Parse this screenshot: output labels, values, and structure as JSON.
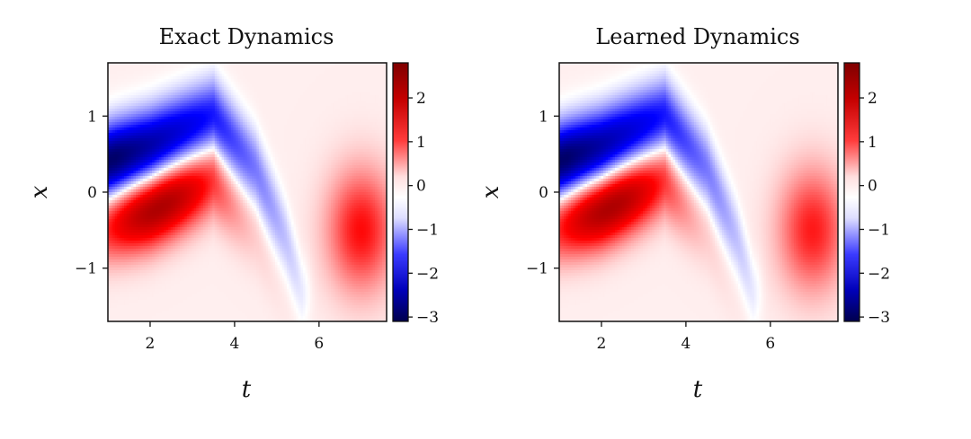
{
  "figure": {
    "colormap": "seismic",
    "colors": {
      "low": "#00004d",
      "mid": "#ffffff",
      "high": "#7f0000",
      "background_value_color": "#f6e6e6"
    }
  },
  "chart_data": [
    {
      "type": "heatmap",
      "title": "Exact Dynamics",
      "xlabel": "t",
      "ylabel": "x",
      "xlim": [
        1.0,
        7.6
      ],
      "ylim": [
        -1.7,
        1.7
      ],
      "xticks": [
        2,
        4,
        6
      ],
      "xtick_labels": [
        "2",
        "4",
        "6"
      ],
      "yticks": [
        1,
        0,
        -1
      ],
      "ytick_labels": [
        "1",
        "0",
        "−1"
      ],
      "colorbar": {
        "vmin": -3.1,
        "vmax": 2.8,
        "ticks": [
          2,
          1,
          0,
          -1,
          -2,
          -3
        ],
        "tick_labels": [
          "2",
          "1",
          "0",
          "−1",
          "−2",
          "−3"
        ]
      },
      "field_features": [
        {
          "kind": "negative-band",
          "path_t": [
            1.0,
            2.0,
            3.5,
            4.5,
            5.2,
            5.6
          ],
          "path_x": [
            0.4,
            0.6,
            1.0,
            0.3,
            -0.6,
            -1.3
          ],
          "peak_value": -3.0
        },
        {
          "kind": "positive-blob",
          "center_t": 2.2,
          "center_x": -0.4,
          "peak_value": 2.5
        },
        {
          "kind": "positive-blob",
          "center_t": 7.0,
          "center_x": -0.5,
          "peak_value": 1.4
        },
        {
          "kind": "background",
          "value": 0.1
        }
      ]
    },
    {
      "type": "heatmap",
      "title": "Learned Dynamics",
      "xlabel": "t",
      "ylabel": "x",
      "xlim": [
        1.0,
        7.6
      ],
      "ylim": [
        -1.7,
        1.7
      ],
      "xticks": [
        2,
        4,
        6
      ],
      "xtick_labels": [
        "2",
        "4",
        "6"
      ],
      "yticks": [
        1,
        0,
        -1
      ],
      "ytick_labels": [
        "1",
        "0",
        "−1"
      ],
      "colorbar": {
        "vmin": -3.1,
        "vmax": 2.8,
        "ticks": [
          2,
          1,
          0,
          -1,
          -2,
          -3
        ],
        "tick_labels": [
          "2",
          "1",
          "0",
          "−1",
          "−2",
          "−3"
        ]
      },
      "field_features": [
        {
          "kind": "negative-band",
          "path_t": [
            1.0,
            2.0,
            3.5,
            4.5,
            5.2,
            5.6
          ],
          "path_x": [
            0.4,
            0.6,
            1.0,
            0.3,
            -0.6,
            -1.3
          ],
          "peak_value": -3.0
        },
        {
          "kind": "positive-blob",
          "center_t": 2.2,
          "center_x": -0.4,
          "peak_value": 2.5
        },
        {
          "kind": "positive-blob",
          "center_t": 7.0,
          "center_x": -0.5,
          "peak_value": 1.3
        },
        {
          "kind": "background",
          "value": 0.1
        }
      ]
    }
  ]
}
